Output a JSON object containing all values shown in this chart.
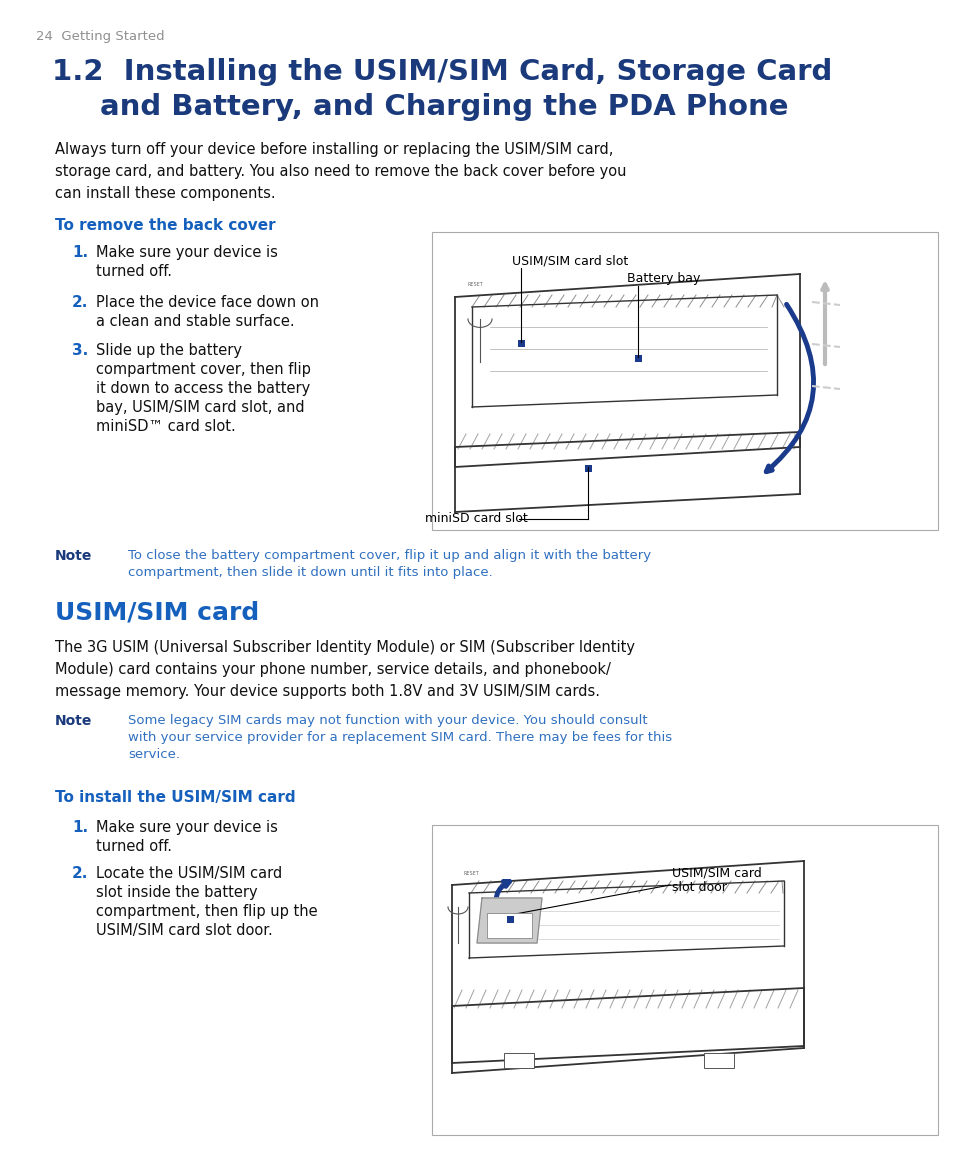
{
  "page_num": "24",
  "section_label": "Getting Started",
  "title_num": "1.2",
  "title_line1": "Installing the USIM/SIM Card, Storage Card",
  "title_line2": "and Battery, and Charging the PDA Phone",
  "intro_lines": [
    "Always turn off your device before installing or replacing the USIM/SIM card,",
    "storage card, and battery. You also need to remove the back cover before you",
    "can install these components."
  ],
  "subhead1": "To remove the back cover",
  "step1_1a": "Make sure your device is",
  "step1_1b": "turned off.",
  "step1_2a": "Place the device face down on",
  "step1_2b": "a clean and stable surface.",
  "step1_3a": "Slide up the battery",
  "step1_3b": "compartment cover, then flip",
  "step1_3c": "it down to access the battery",
  "step1_3d": "bay, USIM/SIM card slot, and",
  "step1_3e": "miniSD™ card slot.",
  "note1_label": "Note",
  "note1_line1": "To close the battery compartment cover, flip it up and align it with the battery",
  "note1_line2": "compartment, then slide it down until it fits into place.",
  "section2_title": "USIM/SIM card",
  "section2_line1": "The 3G USIM (Universal Subscriber Identity Module) or SIM (Subscriber Identity",
  "section2_line2": "Module) card contains your phone number, service details, and phonebook/",
  "section2_line3": "message memory. Your device supports both 1.8V and 3V USIM/SIM cards.",
  "note2_label": "Note",
  "note2_line1": "Some legacy SIM cards may not function with your device. You should consult",
  "note2_line2": "with your service provider for a replacement SIM card. There may be fees for this",
  "note2_line3": "service.",
  "subhead2": "To install the USIM/SIM card",
  "step2_1a": "Make sure your device is",
  "step2_1b": "turned off.",
  "step2_2a": "Locate the USIM/SIM card",
  "step2_2b": "slot inside the battery",
  "step2_2c": "compartment, then flip up the",
  "step2_2d": "USIM/SIM card slot door.",
  "diag1_label1": "USIM/SIM card slot",
  "diag1_label2": "Battery bay",
  "diag1_label3": "miniSD card slot",
  "diag2_label1": "USIM/SIM card",
  "diag2_label2": "slot door",
  "dark_blue": "#1a3a7c",
  "blue_heading": "#1e47a0",
  "blue_text": "#1560bd",
  "black": "#111111",
  "gray": "#909090",
  "note_blue": "#3070c0",
  "diag_blue": "#1a3a8c",
  "bg": "#ffffff"
}
